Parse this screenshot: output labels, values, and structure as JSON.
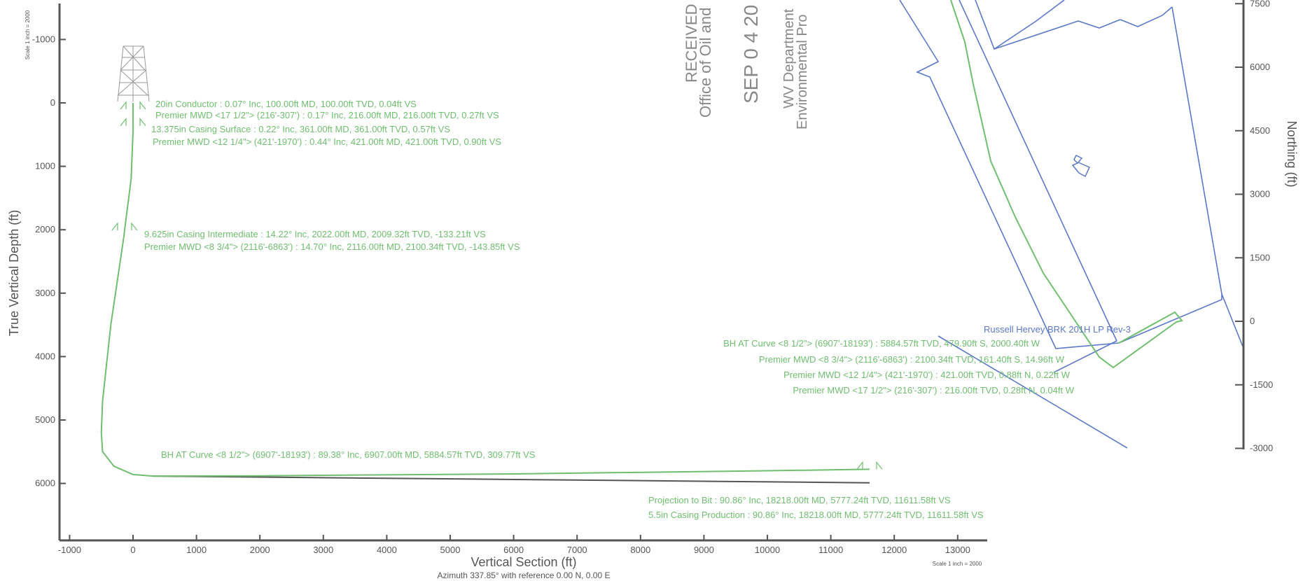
{
  "section_chart": {
    "xlabel": "Vertical Section (ft)",
    "ylabel": "True Vertical Depth (ft)",
    "subtitle": "Azimuth 337.85° with reference 0.00 N, 0.00 E",
    "scale_note_bottom": "Scale 1 inch = 2000",
    "scale_note_left": "Scale 1 inch = 2000",
    "x_ticks": [
      "-1000",
      "0",
      "1000",
      "2000",
      "3000",
      "4000",
      "5000",
      "6000",
      "7000",
      "8000",
      "9000",
      "10000",
      "11000",
      "12000",
      "13000"
    ],
    "y_ticks": [
      "-1000",
      "0",
      "1000",
      "2000",
      "3000",
      "4000",
      "5000",
      "6000"
    ],
    "annotations": [
      "20in Conductor : 0.07° Inc, 100.00ft MD, 100.00ft TVD, 0.04ft VS",
      "Premier MWD <17 1/2\"> (216'-307') : 0.17° Inc, 216.00ft MD, 216.00ft TVD, 0.27ft VS",
      "13.375in Casing Surface : 0.22° Inc, 361.00ft MD, 361.00ft TVD, 0.57ft VS",
      "Premier MWD <12 1/4\"> (421'-1970') : 0.44° Inc, 421.00ft MD, 421.00ft TVD, 0.90ft VS",
      "9.625in Casing Intermediate : 14.22° Inc, 2022.00ft MD, 2009.32ft TVD, -133.21ft VS",
      "Premier MWD <8 3/4\"> (2116'-6863') : 14.70° Inc, 2116.00ft MD, 2100.34ft TVD, -143.85ft VS",
      "BH AT Curve <8 1/2\"> (6907'-18193') : 89.38° Inc, 6907.00ft MD, 5884.57ft TVD, 309.77ft VS",
      "Projection to Bit : 90.86° Inc, 18218.00ft MD, 5777.24ft TVD, 11611.58ft VS",
      "5.5in Casing Production : 90.86° Inc, 18218.00ft MD, 5777.24ft TVD, 11611.58ft VS"
    ]
  },
  "stamp": {
    "line1": "RECEIVED",
    "line2": "Office of Oil and",
    "line3": "SEP 0 4 20",
    "line4": "WV Department",
    "line5": "Environmental Pro"
  },
  "plan_chart": {
    "ylabel": "Northing (ft)",
    "y_ticks": [
      "7500",
      "6000",
      "4500",
      "3000",
      "1500",
      "0",
      "-1500",
      "-3000"
    ],
    "title": "Russell Hervey BRK 201H LP Rev-3",
    "annotations": [
      "BH AT Curve <8 1/2\"> (6907'-18193') : 5884.57ft TVD, 479.90ft S, 2000.40ft W",
      "Premier MWD <8 3/4\"> (2116'-6863') : 2100.34ft TVD, 161.40ft S, 14.96ft W",
      "Premier MWD <12 1/4\"> (421'-1970') : 421.00ft TVD, 0.88ft N, 0.22ft W",
      "Premier MWD <17 1/2\"> (216'-307') : 216.00ft TVD, 0.28ft N, 0.04ft W"
    ]
  },
  "chart_data": [
    {
      "type": "line",
      "xlabel": "Vertical Section (ft)",
      "ylabel": "True Vertical Depth (ft)",
      "xlim": [
        -1150,
        13300
      ],
      "ylim": [
        7000,
        -1500
      ],
      "y_inverted": true,
      "series": [
        {
          "x": [
            0,
            0.04,
            0.27,
            0.57,
            0.9,
            -30,
            -133.21,
            -143.85,
            -350,
            -480,
            -500,
            -480,
            -300,
            0,
            309.77,
            2000,
            6000,
            10000,
            11611.58
          ],
          "y": [
            0,
            100,
            216,
            361,
            421,
            1200,
            2009.32,
            2100.34,
            3500,
            4700,
            5200,
            5500,
            5730,
            5860,
            5884.57,
            5880,
            5850,
            5800,
            5777.24
          ],
          "color": "#6fbf6f"
        },
        {
          "x": [
            309.77,
            11611.58
          ],
          "y": [
            5884.57,
            5990
          ],
          "color": "#555555"
        }
      ],
      "markers": [
        {
          "x": 0,
          "y": 100
        },
        {
          "x": 0,
          "y": 361
        },
        {
          "x": -133.21,
          "y": 2009.32
        },
        {
          "x": 11611.58,
          "y": 5777.24
        }
      ],
      "grid": false
    },
    {
      "type": "line",
      "ylabel": "Northing (ft)",
      "ylim": [
        -3500,
        8000
      ],
      "y_ticks": [
        7500,
        6000,
        4500,
        3000,
        1500,
        0,
        -1500,
        -3000
      ],
      "title": "Russell Hervey BRK 201H LP Rev-3",
      "series": [
        {
          "label_printed": false,
          "x": [
            0,
            -14.96,
            -2000.4
          ],
          "y": [
            0,
            -161.4,
            -479.9
          ],
          "color": "#6fbf6f"
        }
      ],
      "grid": false
    }
  ]
}
